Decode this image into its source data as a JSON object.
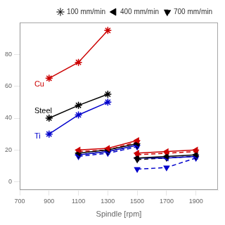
{
  "chart_data": {
    "type": "line",
    "xlabel": "Spindle [rpm]",
    "xlim": [
      700,
      2050
    ],
    "xticks": [
      700,
      900,
      1100,
      1300,
      1500,
      1700,
      1900
    ],
    "ylim": [
      -5,
      100
    ],
    "yticks": [
      0,
      20,
      40,
      60,
      80
    ],
    "grid": false,
    "legend": "upper right",
    "series": [
      {
        "name": "100 mm/min",
        "color": "#cc0000",
        "marker": "star",
        "line_style": "solid",
        "x": [
          900,
          1100,
          1300
        ],
        "values": [
          65,
          75,
          95
        ]
      },
      {
        "name": "100 mm/min",
        "color": "#000000",
        "marker": "star",
        "line_style": "solid",
        "x": [
          900,
          1100,
          1300
        ],
        "values": [
          40,
          48,
          55
        ]
      },
      {
        "name": "100 mm/min",
        "color": "#0000cc",
        "marker": "star",
        "line_style": "solid",
        "x": [
          900,
          1100,
          1300
        ],
        "values": [
          30,
          42,
          50
        ]
      },
      {
        "name": "400 mm/min",
        "color": "#cc0000",
        "marker": "triangle-left",
        "line_style": "solid",
        "x": [
          1100,
          1300,
          1500
        ],
        "values": [
          20,
          21,
          26
        ]
      },
      {
        "name": "400 mm/min",
        "color": "#000000",
        "marker": "triangle-left",
        "line_style": "solid",
        "x": [
          1100,
          1300,
          1500
        ],
        "values": [
          18,
          20,
          24
        ]
      },
      {
        "name": "400 mm/min",
        "color": "#0000cc",
        "marker": "triangle-left",
        "line_style": "solid",
        "x": [
          1100,
          1300,
          1500
        ],
        "values": [
          17,
          19,
          23
        ]
      },
      {
        "name": "400 mm/min",
        "color": "#cc0000",
        "marker": "triangle-left",
        "line_style": "solid",
        "x": [
          1500,
          1700,
          1900
        ],
        "values": [
          18,
          19,
          20
        ]
      },
      {
        "name": "400 mm/min",
        "color": "#000000",
        "marker": "triangle-left",
        "line_style": "solid",
        "x": [
          1500,
          1700,
          1900
        ],
        "values": [
          15,
          16,
          17
        ]
      },
      {
        "name": "400 mm/min",
        "color": "#0000cc",
        "marker": "triangle-left",
        "line_style": "solid",
        "x": [
          1500,
          1700,
          1900
        ],
        "values": [
          15,
          15,
          16
        ]
      },
      {
        "name": "700 mm/min",
        "color": "#cc0000",
        "marker": "triangle-down",
        "line_style": "dashed",
        "x": [
          1100,
          1300,
          1500
        ],
        "values": [
          19,
          20,
          25
        ]
      },
      {
        "name": "700 mm/min",
        "color": "#000000",
        "marker": "triangle-down",
        "line_style": "dashed",
        "x": [
          1100,
          1300,
          1500
        ],
        "values": [
          17,
          19,
          23
        ]
      },
      {
        "name": "700 mm/min",
        "color": "#0000cc",
        "marker": "triangle-down",
        "line_style": "dashed",
        "x": [
          1100,
          1300,
          1500
        ],
        "values": [
          16,
          18,
          22
        ]
      },
      {
        "name": "700 mm/min",
        "color": "#cc0000",
        "marker": "triangle-down",
        "line_style": "dashed",
        "x": [
          1500,
          1700,
          1900
        ],
        "values": [
          17,
          18,
          19
        ]
      },
      {
        "name": "700 mm/min",
        "color": "#000000",
        "marker": "triangle-down",
        "line_style": "dashed",
        "x": [
          1500,
          1700,
          1900
        ],
        "values": [
          14,
          15,
          16
        ]
      },
      {
        "name": "700 mm/min",
        "color": "#0000cc",
        "marker": "triangle-down",
        "line_style": "dashed",
        "x": [
          1500,
          1700,
          1900
        ],
        "values": [
          8,
          9,
          15
        ]
      }
    ],
    "annotations": [
      {
        "text": "Cu",
        "x": 800,
        "y": 60,
        "color": "#cc0000"
      },
      {
        "text": "Steel",
        "x": 800,
        "y": 43,
        "color": "#000000"
      },
      {
        "text": "Ti",
        "x": 800,
        "y": 27,
        "color": "#0000cc"
      }
    ]
  }
}
